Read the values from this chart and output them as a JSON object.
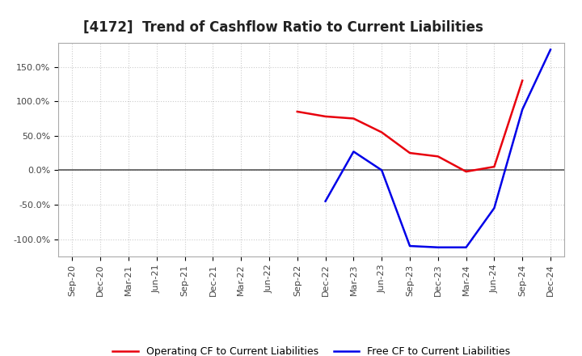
{
  "title": "[4172]  Trend of Cashflow Ratio to Current Liabilities",
  "x_labels": [
    "Sep-20",
    "Dec-20",
    "Mar-21",
    "Jun-21",
    "Sep-21",
    "Dec-21",
    "Mar-22",
    "Jun-22",
    "Sep-22",
    "Dec-22",
    "Mar-23",
    "Jun-23",
    "Sep-23",
    "Dec-23",
    "Mar-24",
    "Jun-24",
    "Sep-24",
    "Dec-24"
  ],
  "operating_cf": [
    null,
    null,
    null,
    null,
    null,
    null,
    null,
    null,
    85.0,
    78.0,
    75.0,
    55.0,
    25.0,
    20.0,
    -2.0,
    5.0,
    130.0,
    null
  ],
  "free_cf": [
    null,
    null,
    null,
    null,
    null,
    null,
    null,
    null,
    null,
    -45.0,
    27.0,
    0.0,
    -110.0,
    -112.0,
    -112.0,
    -55.0,
    88.0,
    175.0
  ],
  "operating_color": "#e8000d",
  "free_color": "#0000e8",
  "ylim": [
    -125,
    185
  ],
  "yticks": [
    -100,
    -50,
    0,
    50,
    100,
    150
  ],
  "ytick_labels": [
    "-100.0%",
    "-50.0%",
    "0.0%",
    "50.0%",
    "100.0%",
    "150.0%"
  ],
  "bg_color": "#ffffff",
  "plot_bg_color": "#ffffff",
  "grid_color": "#cccccc",
  "zero_line_color": "#555555",
  "legend_op": "Operating CF to Current Liabilities",
  "legend_free": "Free CF to Current Liabilities",
  "title_fontsize": 12,
  "tick_fontsize": 8,
  "legend_fontsize": 9
}
